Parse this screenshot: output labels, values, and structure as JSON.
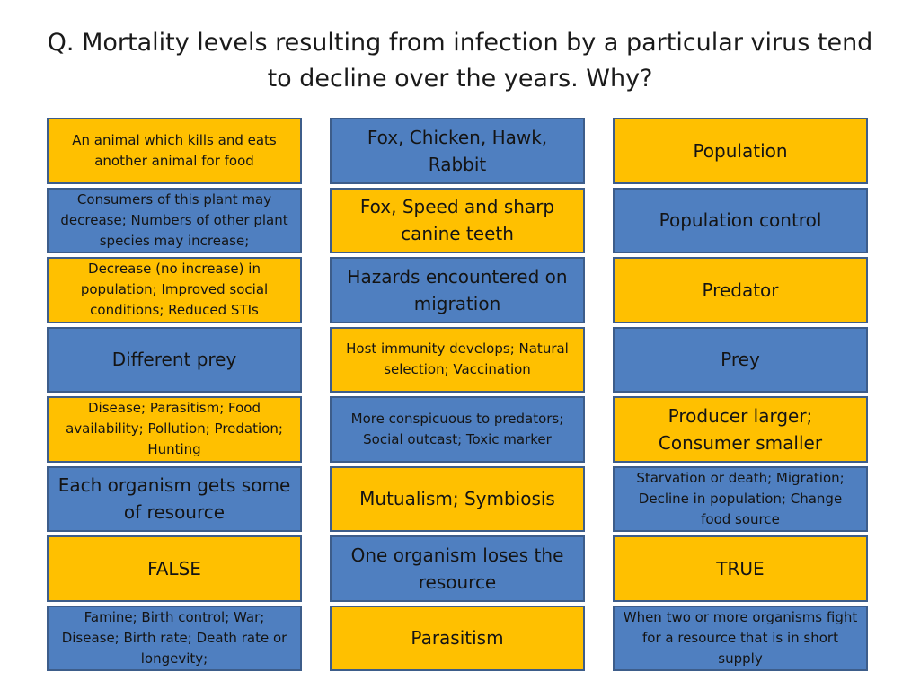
{
  "question": "Q. Mortality levels resulting from infection by a particular virus tend to decline over the years. Why?",
  "colors": {
    "yellow": "#ffc000",
    "blue": "#4f7fc0",
    "border": "#3d5d8a"
  },
  "cards": [
    {
      "text": "An animal which kills and eats another animal for food",
      "color": "yellow",
      "size": "small"
    },
    {
      "text": "Fox, Chicken, Hawk, Rabbit",
      "color": "blue",
      "size": "large"
    },
    {
      "text": "Population",
      "color": "yellow",
      "size": "large"
    },
    {
      "text": "Consumers of this plant may decrease; Numbers of other plant species may increase;",
      "color": "blue",
      "size": "small"
    },
    {
      "text": "Fox, Speed and sharp canine teeth",
      "color": "yellow",
      "size": "large"
    },
    {
      "text": "Population control",
      "color": "blue",
      "size": "large"
    },
    {
      "text": "Decrease (no increase) in population; Improved social conditions; Reduced STIs",
      "color": "yellow",
      "size": "small"
    },
    {
      "text": "Hazards encountered on migration",
      "color": "blue",
      "size": "large"
    },
    {
      "text": "Predator",
      "color": "yellow",
      "size": "large"
    },
    {
      "text": "Different prey",
      "color": "blue",
      "size": "large"
    },
    {
      "text": "Host immunity develops; Natural selection; Vaccination",
      "color": "yellow",
      "size": "small"
    },
    {
      "text": "Prey",
      "color": "blue",
      "size": "large"
    },
    {
      "text": "Disease; Parasitism; Food availability; Pollution; Predation; Hunting",
      "color": "yellow",
      "size": "small"
    },
    {
      "text": "More conspicuous to predators; Social outcast; Toxic marker",
      "color": "blue",
      "size": "small"
    },
    {
      "text": "Producer larger;\nConsumer smaller",
      "color": "yellow",
      "size": "large"
    },
    {
      "text": "Each organism gets some of resource",
      "color": "blue",
      "size": "large"
    },
    {
      "text": "Mutualism; Symbiosis",
      "color": "yellow",
      "size": "large"
    },
    {
      "text": "Starvation or death; Migration; Decline in population; Change food source",
      "color": "blue",
      "size": "small"
    },
    {
      "text": "FALSE",
      "color": "yellow",
      "size": "large"
    },
    {
      "text": "One organism loses the resource",
      "color": "blue",
      "size": "large"
    },
    {
      "text": "TRUE",
      "color": "yellow",
      "size": "large"
    },
    {
      "text": "Famine; Birth control; War; Disease; Birth rate; Death rate or longevity;",
      "color": "blue",
      "size": "small"
    },
    {
      "text": "Parasitism",
      "color": "yellow",
      "size": "large"
    },
    {
      "text": "When two or more organisms fight for a resource that is in short supply",
      "color": "blue",
      "size": "small"
    }
  ]
}
